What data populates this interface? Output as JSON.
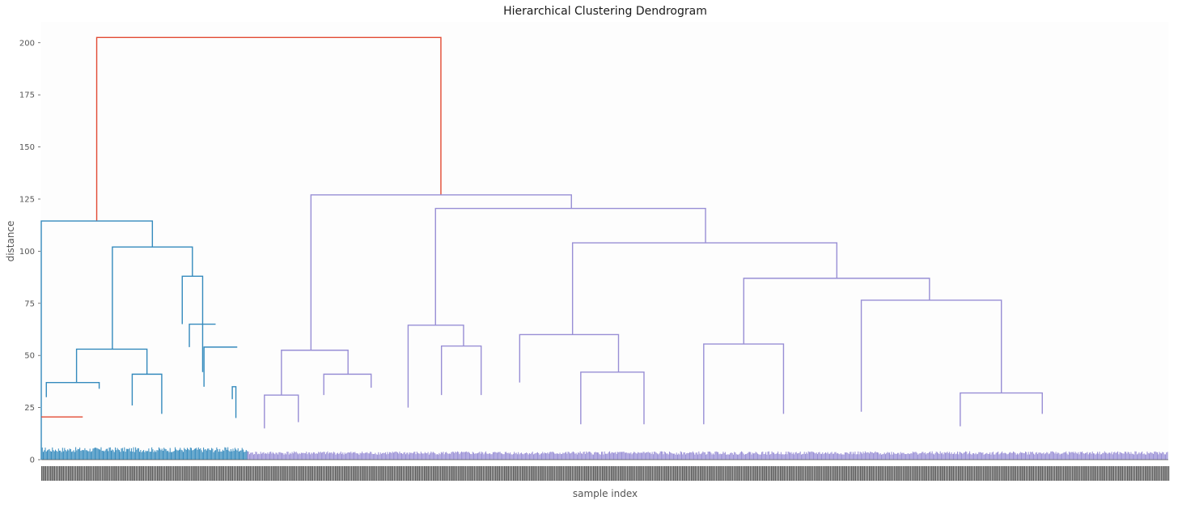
{
  "chart_data": {
    "type": "dendrogram",
    "title": "Hierarchical Clustering Dendrogram",
    "xlabel": "sample index",
    "ylabel": "distance",
    "ylim": [
      0,
      210
    ],
    "yticks": [
      0,
      25,
      50,
      75,
      100,
      125,
      150,
      175,
      200
    ],
    "x_range": [
      0,
      1000
    ],
    "colors": {
      "root": "#E24A33",
      "cluster_blue": "#348ABD",
      "cluster_purple": "#988ED5",
      "background": "#FDFDFD",
      "text": "#555555"
    },
    "leaf_band": {
      "blue": {
        "x": [
          0,
          183
        ],
        "max_height": 6
      },
      "purple": {
        "x": [
          183,
          1000
        ],
        "max_height": 4
      }
    },
    "links": [
      {
        "x": [
          49.2,
          49.2,
          354.6,
          354.6
        ],
        "y": [
          114.5,
          202.5,
          202.5,
          126.8
        ],
        "color": "#E24A33"
      },
      {
        "x": [
          0,
          0,
          98.6,
          98.6
        ],
        "y": [
          0,
          114.5,
          114.5,
          102
        ],
        "color": "#348ABD"
      },
      {
        "x": [
          63.1,
          63.1,
          134.1,
          134.1
        ],
        "y": [
          53,
          102,
          102,
          88
        ],
        "color": "#348ABD"
      },
      {
        "x": [
          31.3,
          31.3,
          93.8,
          93.8
        ],
        "y": [
          37,
          53,
          53,
          41
        ],
        "color": "#348ABD"
      },
      {
        "x": [
          4.5,
          4.5,
          51.4,
          51.4
        ],
        "y": [
          30,
          37,
          37,
          34
        ],
        "color": "#348ABD"
      },
      {
        "x": [
          80.7,
          80.7,
          106.9,
          106.9
        ],
        "y": [
          26,
          41,
          41,
          22
        ],
        "color": "#348ABD"
      },
      {
        "x": [
          125.1,
          125.1,
          143.2,
          143.2
        ],
        "y": [
          65,
          88,
          88,
          42
        ],
        "color": "#348ABD"
      },
      {
        "x": [
          131.4,
          131.4,
          154.7,
          154.7
        ],
        "y": [
          54,
          65,
          65,
          65
        ],
        "color": "#348ABD"
      },
      {
        "x": [
          144.4,
          144.4,
          173.9,
          173.9
        ],
        "y": [
          35,
          54,
          54,
          54
        ],
        "color": "#348ABD"
      },
      {
        "x": [
          169.5,
          169.5,
          172.7,
          172.7
        ],
        "y": [
          29,
          35,
          35,
          20
        ],
        "color": "#348ABD"
      },
      {
        "x": [
          0,
          0,
          36.8,
          36.8
        ],
        "y": [
          20.5,
          20.5,
          20.5,
          20.5
        ],
        "color": "#E24A33"
      },
      {
        "x": [
          239.3,
          239.3,
          470.4,
          470.4
        ],
        "y": [
          52.5,
          127,
          127,
          120.5
        ],
        "color": "#988ED5"
      },
      {
        "x": [
          213.1,
          213.1,
          272.2,
          272.2
        ],
        "y": [
          31,
          52.5,
          52.5,
          41
        ],
        "color": "#988ED5"
      },
      {
        "x": [
          198,
          198,
          228.1,
          228.1
        ],
        "y": [
          15,
          31,
          31,
          18
        ],
        "color": "#988ED5"
      },
      {
        "x": [
          250.7,
          250.7,
          292.7,
          292.7
        ],
        "y": [
          31,
          41,
          41,
          34.5
        ],
        "color": "#988ED5"
      },
      {
        "x": [
          349.8,
          349.8,
          589.4,
          589.4
        ],
        "y": [
          64.5,
          120.5,
          120.5,
          104
        ],
        "color": "#988ED5"
      },
      {
        "x": [
          325.5,
          325.5,
          374.7,
          374.7
        ],
        "y": [
          25,
          64.5,
          64.5,
          54.5
        ],
        "color": "#988ED5"
      },
      {
        "x": [
          355.1,
          355.1,
          390.3,
          390.3
        ],
        "y": [
          31,
          54.5,
          54.5,
          31
        ],
        "color": "#988ED5"
      },
      {
        "x": [
          471.4,
          471.4,
          705.9,
          705.9
        ],
        "y": [
          60,
          104,
          104,
          87
        ],
        "color": "#988ED5"
      },
      {
        "x": [
          424.5,
          424.5,
          512.2,
          512.2
        ],
        "y": [
          37,
          60,
          60,
          42
        ],
        "color": "#988ED5"
      },
      {
        "x": [
          478.7,
          478.7,
          534.8,
          534.8
        ],
        "y": [
          17,
          42,
          42,
          17
        ],
        "color": "#988ED5"
      },
      {
        "x": [
          623.3,
          623.3,
          788.1,
          788.1
        ],
        "y": [
          55.5,
          87,
          87,
          76.5
        ],
        "color": "#988ED5"
      },
      {
        "x": [
          587.8,
          587.8,
          658.6,
          658.6
        ],
        "y": [
          17,
          55.5,
          55.5,
          22
        ],
        "color": "#988ED5"
      },
      {
        "x": [
          727.6,
          727.6,
          851.9,
          851.9
        ],
        "y": [
          23,
          76.5,
          76.5,
          32
        ],
        "color": "#988ED5"
      },
      {
        "x": [
          815.4,
          815.4,
          888.2,
          888.2
        ],
        "y": [
          16,
          32,
          32,
          22
        ],
        "color": "#988ED5"
      }
    ]
  }
}
